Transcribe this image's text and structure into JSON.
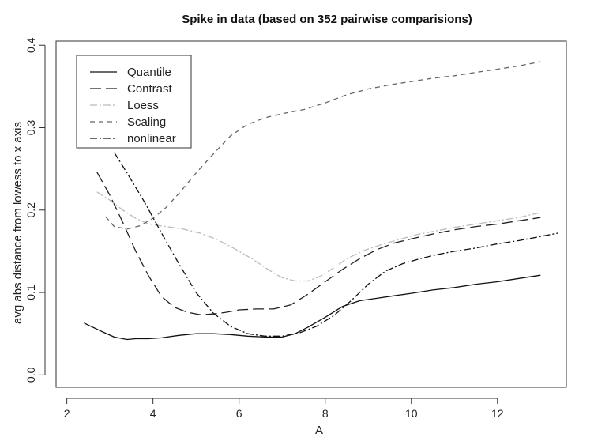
{
  "chart_data": {
    "type": "line",
    "title": "Spike in data (based on 352 pairwise comparisions)",
    "xlabel": "A",
    "ylabel": "avg abs distance from lowess to x axis",
    "xlim": [
      1.75,
      13.6
    ],
    "ylim": [
      -0.015,
      0.405
    ],
    "xticks": [
      2,
      4,
      6,
      8,
      10,
      12
    ],
    "xtick_labels": [
      "2",
      "4",
      "6",
      "8",
      "10",
      "12"
    ],
    "yticks": [
      0.0,
      0.1,
      0.2,
      0.3,
      0.4
    ],
    "ytick_labels": [
      "0.0",
      "0.1",
      "0.2",
      "0.3",
      "0.4"
    ],
    "grid": false,
    "legend_position": "top-left",
    "series": [
      {
        "name": "Quantile",
        "color": "#111111",
        "dash": "solid",
        "x": [
          2.4,
          2.8,
          3.1,
          3.4,
          3.6,
          3.9,
          4.2,
          4.6,
          5.0,
          5.4,
          5.8,
          6.2,
          6.6,
          7.0,
          7.3,
          7.6,
          8.0,
          8.4,
          8.8,
          9.2,
          9.6,
          10.0,
          10.5,
          11.0,
          11.5,
          12.0,
          12.5,
          13.0
        ],
        "y": [
          0.063,
          0.053,
          0.046,
          0.043,
          0.044,
          0.044,
          0.045,
          0.048,
          0.05,
          0.05,
          0.049,
          0.047,
          0.046,
          0.046,
          0.05,
          0.058,
          0.07,
          0.083,
          0.09,
          0.093,
          0.096,
          0.099,
          0.103,
          0.106,
          0.11,
          0.113,
          0.117,
          0.121
        ]
      },
      {
        "name": "Contrast",
        "color": "#222222",
        "dash": "14,6",
        "x": [
          2.7,
          3.0,
          3.3,
          3.6,
          3.9,
          4.2,
          4.5,
          4.8,
          5.1,
          5.4,
          5.7,
          6.0,
          6.4,
          6.8,
          7.2,
          7.6,
          8.0,
          8.4,
          8.8,
          9.2,
          9.6,
          10.0,
          10.5,
          11.0,
          11.5,
          12.0,
          12.5,
          13.0
        ],
        "y": [
          0.246,
          0.218,
          0.185,
          0.15,
          0.12,
          0.095,
          0.082,
          0.076,
          0.073,
          0.074,
          0.076,
          0.079,
          0.08,
          0.08,
          0.085,
          0.098,
          0.113,
          0.128,
          0.141,
          0.152,
          0.16,
          0.165,
          0.171,
          0.176,
          0.18,
          0.183,
          0.187,
          0.191
        ]
      },
      {
        "name": "Loess",
        "color": "#bbbbbb",
        "dash": "9,3,2,3",
        "x": [
          2.7,
          3.0,
          3.3,
          3.6,
          3.9,
          4.3,
          4.7,
          5.1,
          5.5,
          5.9,
          6.3,
          6.7,
          7.0,
          7.3,
          7.6,
          7.9,
          8.2,
          8.5,
          8.9,
          9.3,
          9.7,
          10.1,
          10.5,
          11.0,
          11.5,
          12.0,
          12.5,
          13.0
        ],
        "y": [
          0.222,
          0.212,
          0.2,
          0.19,
          0.183,
          0.18,
          0.177,
          0.172,
          0.164,
          0.153,
          0.141,
          0.127,
          0.118,
          0.114,
          0.114,
          0.12,
          0.13,
          0.141,
          0.151,
          0.158,
          0.164,
          0.17,
          0.174,
          0.179,
          0.183,
          0.187,
          0.191,
          0.197
        ]
      },
      {
        "name": "Scaling",
        "color": "#666666",
        "dash": "6,5",
        "x": [
          2.9,
          3.1,
          3.4,
          3.7,
          4.0,
          4.3,
          4.6,
          5.0,
          5.4,
          5.8,
          6.2,
          6.6,
          7.0,
          7.5,
          8.0,
          8.5,
          9.0,
          9.5,
          10.0,
          10.5,
          11.0,
          11.5,
          12.0,
          12.5,
          13.0
        ],
        "y": [
          0.192,
          0.18,
          0.177,
          0.181,
          0.19,
          0.203,
          0.22,
          0.245,
          0.268,
          0.29,
          0.304,
          0.312,
          0.317,
          0.322,
          0.33,
          0.34,
          0.347,
          0.352,
          0.356,
          0.36,
          0.363,
          0.367,
          0.371,
          0.375,
          0.38
        ]
      },
      {
        "name": "nonlinear",
        "color": "#111111",
        "dash": "9,3,2,3",
        "x": [
          3.1,
          3.4,
          3.8,
          4.2,
          4.6,
          5.0,
          5.4,
          5.8,
          6.2,
          6.6,
          7.0,
          7.4,
          7.8,
          8.2,
          8.6,
          9.0,
          9.4,
          9.8,
          10.2,
          10.6,
          11.0,
          11.5,
          12.0,
          12.5,
          13.0,
          13.4
        ],
        "y": [
          0.27,
          0.245,
          0.21,
          0.172,
          0.135,
          0.1,
          0.075,
          0.059,
          0.05,
          0.047,
          0.047,
          0.051,
          0.059,
          0.072,
          0.09,
          0.11,
          0.126,
          0.135,
          0.141,
          0.146,
          0.15,
          0.154,
          0.159,
          0.163,
          0.168,
          0.172
        ]
      }
    ]
  }
}
